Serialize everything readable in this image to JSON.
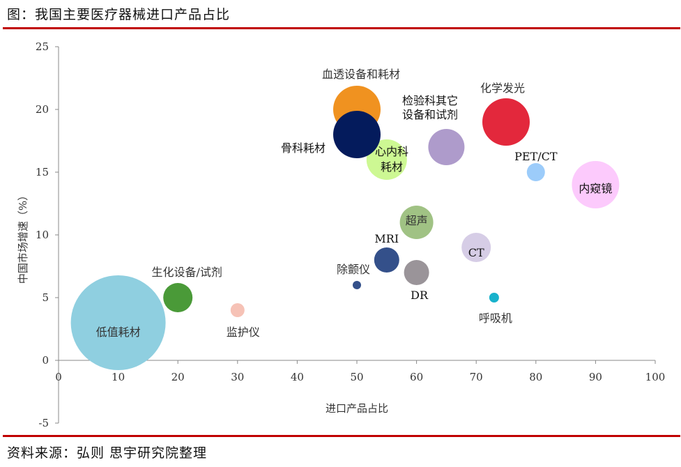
{
  "header": {
    "title": "图：我国主要医疗器械进口产品占比"
  },
  "footer": {
    "source": "资料来源：弘则 思宇研究院整理"
  },
  "chart_data": {
    "type": "bubble",
    "title": "图：我国主要医疗器械进口产品占比",
    "xlabel": "进口产品占比",
    "ylabel": "中国市场增速（%）",
    "xlim": [
      0,
      100
    ],
    "ylim": [
      -5,
      25
    ],
    "xticks": [
      0,
      10,
      20,
      30,
      40,
      50,
      60,
      70,
      80,
      90,
      100
    ],
    "yticks": [
      -5,
      0,
      5,
      10,
      15,
      20,
      25
    ],
    "grid": false,
    "points": [
      {
        "label": "低值耗材",
        "x": 10,
        "y": 3,
        "size": 68,
        "color": "#8FCFE0"
      },
      {
        "label": "生化设备/试剂",
        "x": 20,
        "y": 5,
        "size": 21,
        "color": "#4A9A38"
      },
      {
        "label": "监护仪",
        "x": 30,
        "y": 4,
        "size": 10,
        "color": "#F6C2B6"
      },
      {
        "label": "除颤仪",
        "x": 50,
        "y": 6,
        "size": 6,
        "color": "#34508A"
      },
      {
        "label": "MRI",
        "x": 55,
        "y": 8,
        "size": 18,
        "color": "#34508A"
      },
      {
        "label": "DR",
        "x": 60,
        "y": 7,
        "size": 18,
        "color": "#9A9499"
      },
      {
        "label": "超声",
        "x": 60,
        "y": 11,
        "size": 24,
        "color": "#A0C284"
      },
      {
        "label": "CT",
        "x": 70,
        "y": 9,
        "size": 21,
        "color": "#D6CDE6"
      },
      {
        "label": "呼吸机",
        "x": 73,
        "y": 5,
        "size": 7,
        "color": "#18B2CC"
      },
      {
        "label": "内窥镜",
        "x": 90,
        "y": 14,
        "size": 34,
        "color": "#FCCAFC"
      },
      {
        "label": "PET/CT",
        "x": 80,
        "y": 15,
        "size": 13,
        "color": "#9CCCFA"
      },
      {
        "label": "化学发光",
        "x": 75,
        "y": 19,
        "size": 34,
        "color": "#E3283C"
      },
      {
        "label": "检验科其它设备和试剂",
        "x": 65,
        "y": 17,
        "size": 26,
        "color": "#AE9BCB"
      },
      {
        "label": "心内科耗材",
        "x": 55,
        "y": 16,
        "size": 29,
        "color": "#CDF893"
      },
      {
        "label": "血透设备和耗材",
        "x": 50,
        "y": 20,
        "size": 34,
        "color": "#F09220"
      },
      {
        "label": "骨科耗材",
        "x": 50,
        "y": 18,
        "size": 34,
        "color": "#041B5C"
      }
    ]
  }
}
